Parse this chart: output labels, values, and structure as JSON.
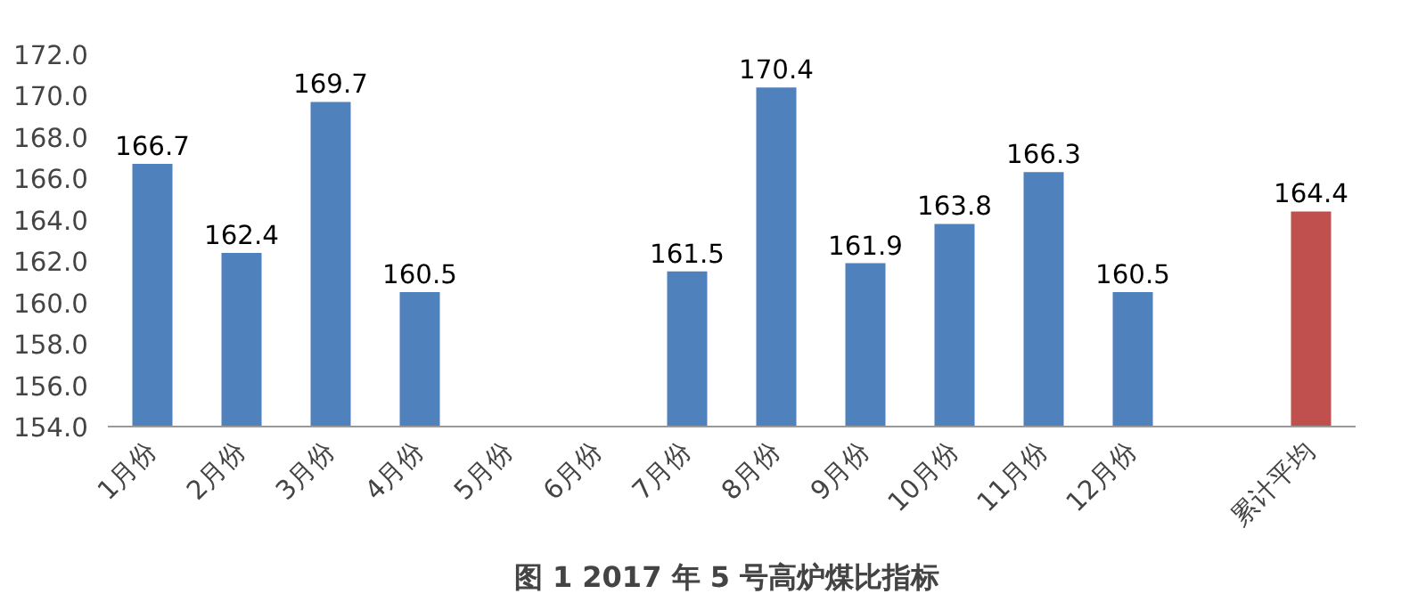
{
  "chart_data": {
    "type": "bar",
    "title": "图 1  2017 年 5 号高炉煤比指标",
    "categories": [
      "1月份",
      "2月份",
      "3月份",
      "4月份",
      "5月份",
      "6月份",
      "7月份",
      "8月份",
      "9月份",
      "10月份",
      "11月份",
      "12月份",
      null,
      "累计平均"
    ],
    "values": [
      166.7,
      162.4,
      169.7,
      160.5,
      null,
      null,
      161.5,
      170.4,
      161.9,
      163.8,
      166.3,
      160.5,
      null,
      164.4
    ],
    "colors": [
      "#4f81bd",
      "#4f81bd",
      "#4f81bd",
      "#4f81bd",
      "#4f81bd",
      "#4f81bd",
      "#4f81bd",
      "#4f81bd",
      "#4f81bd",
      "#4f81bd",
      "#4f81bd",
      "#4f81bd",
      "#4f81bd",
      "#c0504d"
    ],
    "ylim": [
      154,
      172
    ],
    "yticks": [
      {
        "value": 154,
        "label": "154.0"
      },
      {
        "value": 156,
        "label": "156.0"
      },
      {
        "value": 158,
        "label": "158.0"
      },
      {
        "value": 160,
        "label": "160.0"
      },
      {
        "value": 162,
        "label": "162.0"
      },
      {
        "value": 164,
        "label": "164.0"
      },
      {
        "value": 166,
        "label": "166.0"
      },
      {
        "value": 168,
        "label": "168.0"
      },
      {
        "value": 170,
        "label": "170.0"
      },
      {
        "value": 172,
        "label": "172.0"
      }
    ],
    "data_labels": true,
    "grid": false
  }
}
